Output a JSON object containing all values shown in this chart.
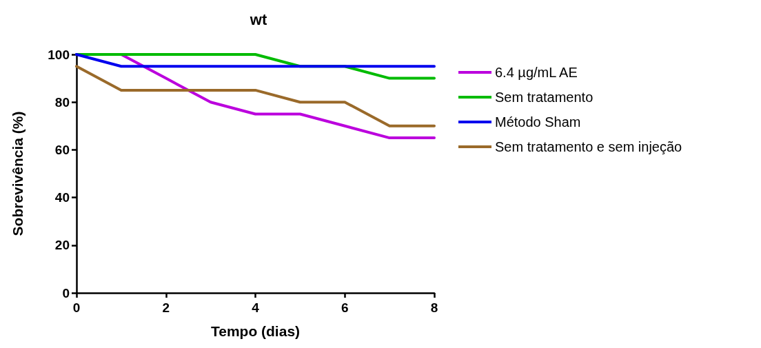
{
  "chart_data": {
    "type": "line",
    "title": "wt",
    "xlabel": "Tempo (dias)",
    "ylabel": "Sobrevivência (%)",
    "x": [
      0,
      1,
      2,
      3,
      4,
      5,
      6,
      7,
      8
    ],
    "series": [
      {
        "name": "6.4 µg/mL AE",
        "color": "#bb00dd",
        "values": [
          100,
          100,
          90,
          80,
          75,
          75,
          70,
          65,
          65
        ]
      },
      {
        "name": "Sem tratamento",
        "color": "#00bb00",
        "values": [
          100,
          100,
          100,
          100,
          100,
          95,
          95,
          90,
          90
        ]
      },
      {
        "name": "Método Sham",
        "color": "#0000ee",
        "values": [
          100,
          95,
          95,
          95,
          95,
          95,
          95,
          95,
          95
        ]
      },
      {
        "name": "Sem tratamento e sem injeção",
        "color": "#9a6a2a",
        "values": [
          95,
          85,
          85,
          85,
          85,
          80,
          80,
          70,
          70
        ]
      }
    ],
    "xlim": [
      0,
      8
    ],
    "xticks": [
      0,
      2,
      4,
      6,
      8
    ],
    "ylim": [
      0,
      100
    ],
    "yticks": [
      0,
      20,
      40,
      60,
      80,
      100
    ],
    "grid": false,
    "legend": "right",
    "marker": "none",
    "line_style": "solid"
  }
}
